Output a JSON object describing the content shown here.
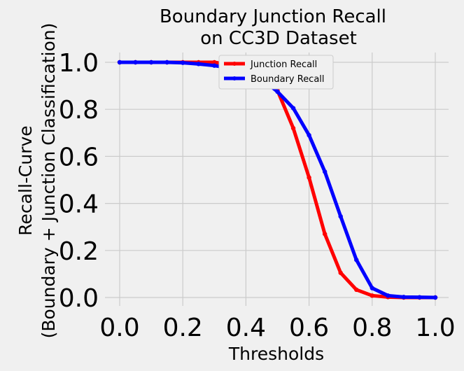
{
  "chart_data": {
    "type": "line",
    "title_lines": [
      "Boundary Junction Recall",
      "on CC3D  Dataset"
    ],
    "xlabel": "Thresholds",
    "ylabel_lines": [
      "Recall-Curve",
      "(Boundary + Junction Classification)"
    ],
    "xlim": [
      0.0,
      1.0
    ],
    "ylim": [
      0.0,
      1.0
    ],
    "xticks": [
      "0.0",
      "0.2",
      "0.4",
      "0.6",
      "0.8",
      "1.0"
    ],
    "yticks": [
      "0.0",
      "0.2",
      "0.4",
      "0.6",
      "0.8",
      "1.0"
    ],
    "grid": true,
    "legend_position": "top-center",
    "x": [
      0.0,
      0.05,
      0.1,
      0.15,
      0.2,
      0.25,
      0.3,
      0.35,
      0.4,
      0.45,
      0.5,
      0.55,
      0.6,
      0.65,
      0.7,
      0.75,
      0.8,
      0.85,
      0.9,
      0.95,
      1.0
    ],
    "series": [
      {
        "name": "Junction Recall",
        "color": "#ff0000",
        "values": [
          1.0,
          1.0,
          1.0,
          1.0,
          1.0,
          1.0,
          1.0,
          0.99,
          0.99,
          0.97,
          0.88,
          0.72,
          0.51,
          0.27,
          0.105,
          0.033,
          0.008,
          0.002,
          0.0,
          0.0,
          0.0
        ]
      },
      {
        "name": "Boundary Recall",
        "color": "#0000ff",
        "values": [
          1.0,
          1.0,
          1.0,
          1.0,
          0.998,
          0.993,
          0.986,
          0.975,
          0.955,
          0.93,
          0.875,
          0.805,
          0.69,
          0.535,
          0.345,
          0.16,
          0.04,
          0.008,
          0.002,
          0.001,
          0.0
        ]
      }
    ]
  }
}
